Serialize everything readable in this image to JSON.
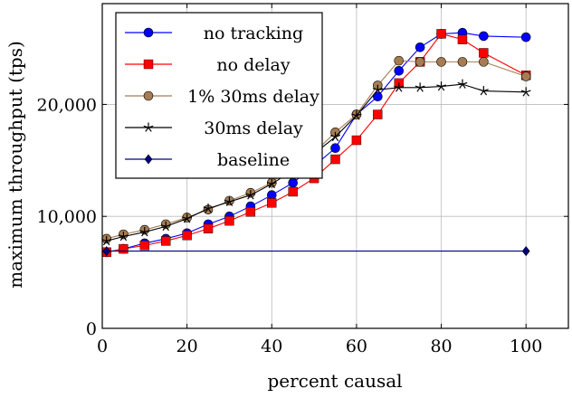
{
  "chart_data": {
    "type": "line",
    "xlabel": "percent causal",
    "ylabel": "maximum throughput (tps)",
    "xlim": [
      0,
      110
    ],
    "ylim": [
      0,
      29000
    ],
    "x_ticks": [
      0,
      20,
      40,
      60,
      80,
      100
    ],
    "y_ticks": [
      0,
      10000,
      20000
    ],
    "x_tick_labels": [
      "0",
      "20",
      "40",
      "60",
      "80",
      "100"
    ],
    "y_tick_labels": [
      "0",
      "10,000",
      "20,000"
    ],
    "grid": true,
    "legend_position": "top-left",
    "series": [
      {
        "name": "no tracking",
        "color": "#0000ff",
        "marker": "circle",
        "x": [
          1,
          5,
          10,
          15,
          20,
          25,
          30,
          35,
          40,
          45,
          50,
          55,
          60,
          65,
          70,
          75,
          80,
          85,
          90,
          100
        ],
        "y": [
          6800,
          7100,
          7600,
          8000,
          8500,
          9300,
          10000,
          10900,
          11900,
          13000,
          14500,
          16100,
          19100,
          20700,
          23000,
          25100,
          26300,
          26400,
          26100,
          26000
        ]
      },
      {
        "name": "no delay",
        "color": "#ff0000",
        "marker": "square",
        "x": [
          1,
          5,
          10,
          15,
          20,
          25,
          30,
          35,
          40,
          45,
          50,
          55,
          60,
          65,
          70,
          75,
          80,
          85,
          90,
          100
        ],
        "y": [
          6800,
          7100,
          7400,
          7800,
          8300,
          8900,
          9600,
          10400,
          11200,
          12200,
          13400,
          15100,
          16800,
          19100,
          21900,
          23800,
          26300,
          25800,
          24600,
          22600
        ]
      },
      {
        "name": "1% 30ms delay",
        "color": "#a67c52",
        "marker": "circle",
        "x": [
          1,
          5,
          10,
          15,
          20,
          25,
          30,
          35,
          40,
          45,
          50,
          55,
          60,
          65,
          70,
          75,
          80,
          85,
          90,
          100
        ],
        "y": [
          8000,
          8400,
          8800,
          9300,
          9900,
          10600,
          11400,
          12100,
          13000,
          14600,
          15700,
          17500,
          19100,
          21700,
          23900,
          23800,
          23800,
          23800,
          23800,
          22500
        ]
      },
      {
        "name": "30ms delay",
        "color": "#000000",
        "marker": "star",
        "x": [
          1,
          5,
          10,
          15,
          20,
          25,
          30,
          35,
          40,
          45,
          50,
          55,
          60,
          65,
          70,
          75,
          80,
          85,
          90,
          100
        ],
        "y": [
          7800,
          8200,
          8600,
          9100,
          9800,
          10700,
          11300,
          11900,
          12900,
          14100,
          15600,
          17100,
          19000,
          21300,
          21500,
          21500,
          21600,
          21800,
          21200,
          21100
        ]
      },
      {
        "name": "baseline",
        "color": "#000080",
        "marker": "diamond",
        "x": [
          1,
          100
        ],
        "y": [
          6900,
          6900
        ]
      }
    ]
  }
}
